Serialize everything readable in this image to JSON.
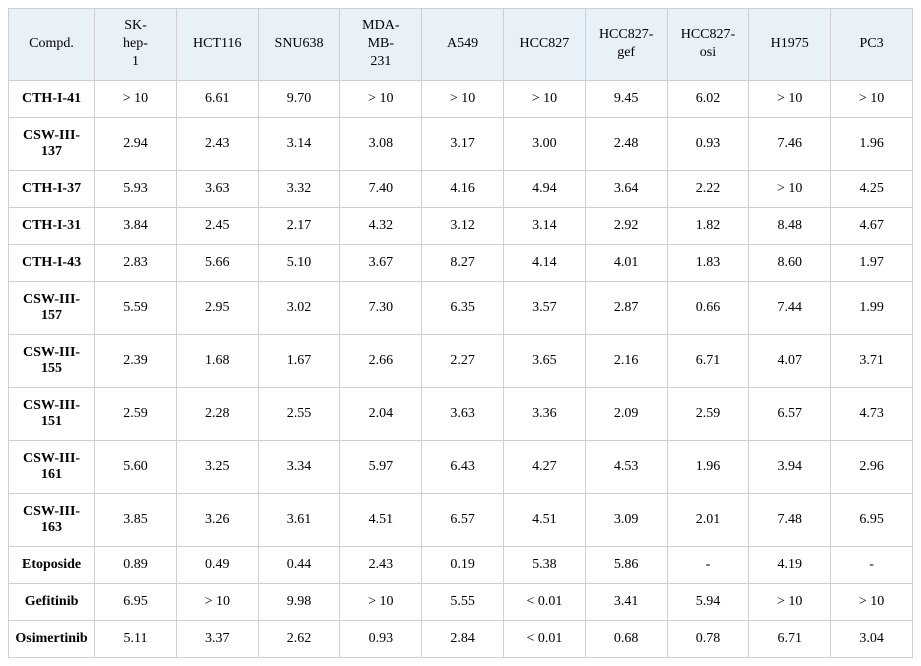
{
  "table": {
    "type": "table",
    "header_bg": "#e8f0f8",
    "border_color": "#d0d0d0",
    "text_color": "#000000",
    "font_family": "Times New Roman",
    "header_fontsize": 14,
    "cell_fontsize": 14,
    "columns": [
      "Compd.",
      "SK-hep-1",
      "HCT116",
      "SNU638",
      "MDA-MB-231",
      "A549",
      "HCC827",
      "HCC827-gef",
      "HCC827-osi",
      "H1975",
      "PC3"
    ],
    "rows": [
      [
        "CTH-I-41",
        "> 10",
        "6.61",
        "9.70",
        "> 10",
        "> 10",
        "> 10",
        "9.45",
        "6.02",
        "> 10",
        "> 10"
      ],
      [
        "CSW-III-137",
        "2.94",
        "2.43",
        "3.14",
        "3.08",
        "3.17",
        "3.00",
        "2.48",
        "0.93",
        "7.46",
        "1.96"
      ],
      [
        "CTH-I-37",
        "5.93",
        "3.63",
        "3.32",
        "7.40",
        "4.16",
        "4.94",
        "3.64",
        "2.22",
        "> 10",
        "4.25"
      ],
      [
        "CTH-I-31",
        "3.84",
        "2.45",
        "2.17",
        "4.32",
        "3.12",
        "3.14",
        "2.92",
        "1.82",
        "8.48",
        "4.67"
      ],
      [
        "CTH-I-43",
        "2.83",
        "5.66",
        "5.10",
        "3.67",
        "8.27",
        "4.14",
        "4.01",
        "1.83",
        "8.60",
        "1.97"
      ],
      [
        "CSW-III-157",
        "5.59",
        "2.95",
        "3.02",
        "7.30",
        "6.35",
        "3.57",
        "2.87",
        "0.66",
        "7.44",
        "1.99"
      ],
      [
        "CSW-III-155",
        "2.39",
        "1.68",
        "1.67",
        "2.66",
        "2.27",
        "3.65",
        "2.16",
        "6.71",
        "4.07",
        "3.71"
      ],
      [
        "CSW-III-151",
        "2.59",
        "2.28",
        "2.55",
        "2.04",
        "3.63",
        "3.36",
        "2.09",
        "2.59",
        "6.57",
        "4.73"
      ],
      [
        "CSW-III-161",
        "5.60",
        "3.25",
        "3.34",
        "5.97",
        "6.43",
        "4.27",
        "4.53",
        "1.96",
        "3.94",
        "2.96"
      ],
      [
        "CSW-III-163",
        "3.85",
        "3.26",
        "3.61",
        "4.51",
        "6.57",
        "4.51",
        "3.09",
        "2.01",
        "7.48",
        "6.95"
      ],
      [
        "Etoposide",
        "0.89",
        "0.49",
        "0.44",
        "2.43",
        "0.19",
        "5.38",
        "5.86",
        "-",
        "4.19",
        "-"
      ],
      [
        "Gefitinib",
        "6.95",
        "> 10",
        "9.98",
        "> 10",
        "5.55",
        "< 0.01",
        "3.41",
        "5.94",
        "> 10",
        "> 10"
      ],
      [
        "Osimertinib",
        "5.11",
        "3.37",
        "2.62",
        "0.93",
        "2.84",
        "< 0.01",
        "0.68",
        "0.78",
        "6.71",
        "3.04"
      ]
    ]
  }
}
